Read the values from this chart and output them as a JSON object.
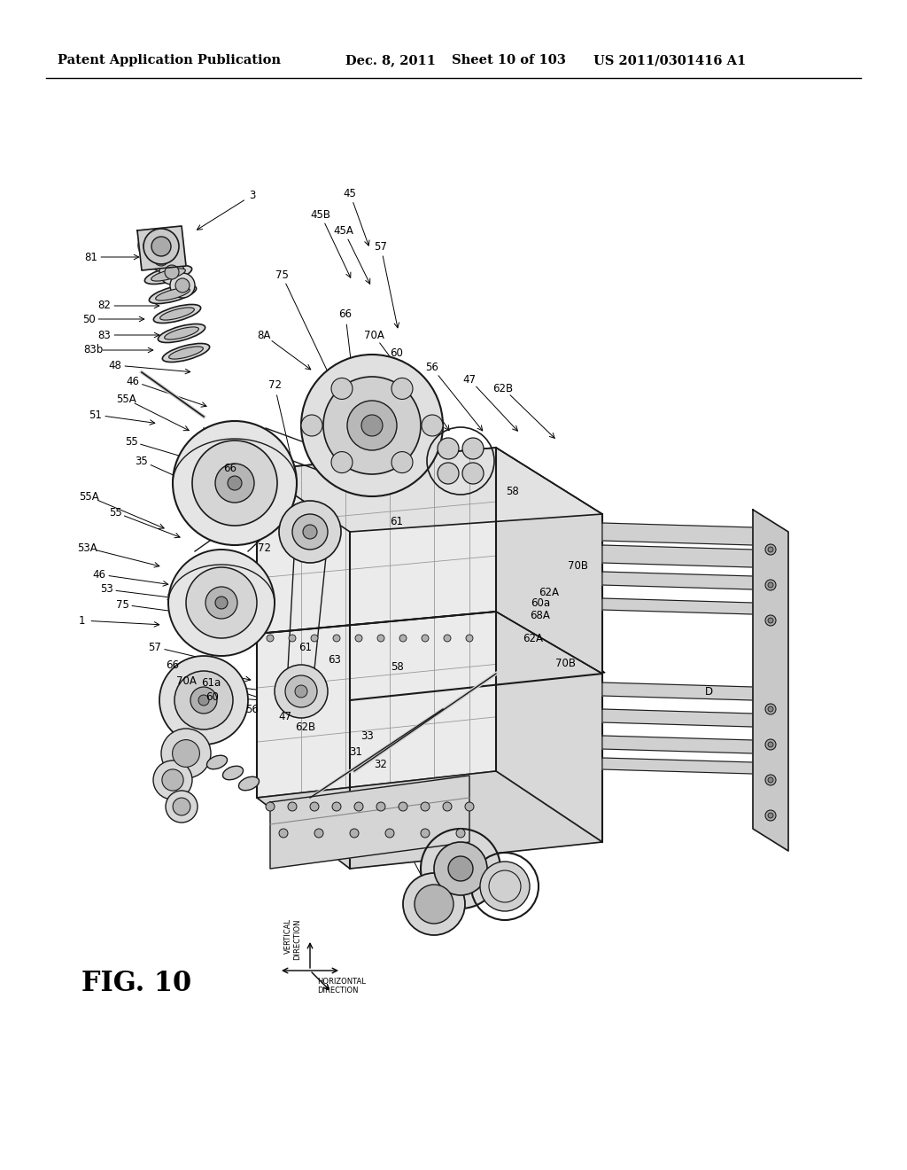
{
  "bg_color": "#ffffff",
  "header_text": "Patent Application Publication",
  "header_date": "Dec. 8, 2011",
  "header_sheet": "Sheet 10 of 103",
  "header_patent": "US 2011/0301416 A1",
  "fig_label": "FIG. 10",
  "header_fontsize": 10.5,
  "fig_label_fontsize": 22,
  "label_fontsize": 8.5,
  "direction_fontsize": 6.5,
  "diagram_color": "#1a1a1a",
  "bg_gray": "#f0f0f0",
  "mid_gray": "#d0d0d0",
  "dark_gray": "#a0a0a0"
}
